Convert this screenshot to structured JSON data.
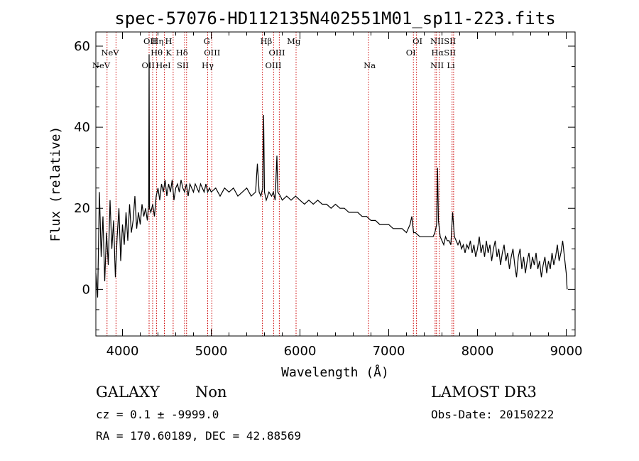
{
  "chart_data": {
    "type": "line",
    "title": "spec-57076-HD112135N402551M01_sp11-223.fits",
    "xlabel": "Wavelength (Å)",
    "ylabel": "Flux (relative)",
    "xlim": [
      3700,
      9100
    ],
    "ylim": [
      -11.5,
      63.5
    ],
    "x_ticks": [
      4000,
      5000,
      6000,
      7000,
      8000,
      9000
    ],
    "y_ticks": [
      0,
      20,
      40,
      60
    ],
    "grid": false,
    "series": [
      {
        "color": "#000000",
        "points": [
          [
            3700,
            4
          ],
          [
            3720,
            -2
          ],
          [
            3740,
            24
          ],
          [
            3760,
            8
          ],
          [
            3780,
            18
          ],
          [
            3800,
            2
          ],
          [
            3820,
            14
          ],
          [
            3840,
            6
          ],
          [
            3860,
            22
          ],
          [
            3880,
            10
          ],
          [
            3900,
            17
          ],
          [
            3920,
            3
          ],
          [
            3940,
            13
          ],
          [
            3960,
            20
          ],
          [
            3980,
            7
          ],
          [
            4000,
            16
          ],
          [
            4020,
            11
          ],
          [
            4040,
            19
          ],
          [
            4060,
            12
          ],
          [
            4080,
            21
          ],
          [
            4100,
            14
          ],
          [
            4120,
            17
          ],
          [
            4140,
            23
          ],
          [
            4160,
            15
          ],
          [
            4180,
            19
          ],
          [
            4200,
            16
          ],
          [
            4220,
            21
          ],
          [
            4240,
            18
          ],
          [
            4260,
            20
          ],
          [
            4280,
            17
          ],
          [
            4295,
            21
          ],
          [
            4300,
            58
          ],
          [
            4305,
            20
          ],
          [
            4320,
            19
          ],
          [
            4340,
            21
          ],
          [
            4360,
            18
          ],
          [
            4380,
            23
          ],
          [
            4400,
            25
          ],
          [
            4420,
            22
          ],
          [
            4440,
            26
          ],
          [
            4460,
            24
          ],
          [
            4480,
            27
          ],
          [
            4500,
            23
          ],
          [
            4520,
            26
          ],
          [
            4540,
            24
          ],
          [
            4560,
            27
          ],
          [
            4580,
            22
          ],
          [
            4600,
            25
          ],
          [
            4620,
            26
          ],
          [
            4640,
            24
          ],
          [
            4660,
            27
          ],
          [
            4680,
            25
          ],
          [
            4700,
            24
          ],
          [
            4720,
            26
          ],
          [
            4740,
            23
          ],
          [
            4760,
            26
          ],
          [
            4780,
            25
          ],
          [
            4800,
            24
          ],
          [
            4820,
            26
          ],
          [
            4840,
            25
          ],
          [
            4860,
            24
          ],
          [
            4880,
            26
          ],
          [
            4900,
            25
          ],
          [
            4920,
            24
          ],
          [
            4940,
            26
          ],
          [
            4960,
            24
          ],
          [
            4980,
            25
          ],
          [
            5000,
            24
          ],
          [
            5050,
            25
          ],
          [
            5100,
            23
          ],
          [
            5150,
            25
          ],
          [
            5200,
            24
          ],
          [
            5250,
            25
          ],
          [
            5300,
            23
          ],
          [
            5350,
            24
          ],
          [
            5400,
            25
          ],
          [
            5450,
            23
          ],
          [
            5500,
            24
          ],
          [
            5520,
            31
          ],
          [
            5540,
            24
          ],
          [
            5560,
            23
          ],
          [
            5580,
            25
          ],
          [
            5590,
            43
          ],
          [
            5600,
            24
          ],
          [
            5620,
            22
          ],
          [
            5650,
            24
          ],
          [
            5680,
            23
          ],
          [
            5700,
            24
          ],
          [
            5720,
            22
          ],
          [
            5740,
            33
          ],
          [
            5750,
            24
          ],
          [
            5780,
            23
          ],
          [
            5800,
            22
          ],
          [
            5850,
            23
          ],
          [
            5900,
            22
          ],
          [
            5950,
            23
          ],
          [
            6000,
            22
          ],
          [
            6050,
            21
          ],
          [
            6100,
            22
          ],
          [
            6150,
            21
          ],
          [
            6200,
            22
          ],
          [
            6250,
            21
          ],
          [
            6300,
            21
          ],
          [
            6350,
            20
          ],
          [
            6400,
            21
          ],
          [
            6450,
            20
          ],
          [
            6500,
            20
          ],
          [
            6550,
            19
          ],
          [
            6600,
            19
          ],
          [
            6650,
            19
          ],
          [
            6700,
            18
          ],
          [
            6750,
            18
          ],
          [
            6800,
            17
          ],
          [
            6850,
            17
          ],
          [
            6900,
            16
          ],
          [
            6950,
            16
          ],
          [
            7000,
            16
          ],
          [
            7050,
            15
          ],
          [
            7100,
            15
          ],
          [
            7150,
            15
          ],
          [
            7200,
            14
          ],
          [
            7240,
            16
          ],
          [
            7260,
            18
          ],
          [
            7280,
            14
          ],
          [
            7300,
            14
          ],
          [
            7350,
            13
          ],
          [
            7400,
            13
          ],
          [
            7450,
            13
          ],
          [
            7500,
            13
          ],
          [
            7520,
            14
          ],
          [
            7540,
            16
          ],
          [
            7550,
            30
          ],
          [
            7560,
            17
          ],
          [
            7580,
            13
          ],
          [
            7600,
            12
          ],
          [
            7620,
            11
          ],
          [
            7640,
            13
          ],
          [
            7660,
            12
          ],
          [
            7680,
            12
          ],
          [
            7700,
            11
          ],
          [
            7720,
            19
          ],
          [
            7740,
            13
          ],
          [
            7760,
            12
          ],
          [
            7780,
            11
          ],
          [
            7800,
            12
          ],
          [
            7820,
            10
          ],
          [
            7840,
            11
          ],
          [
            7860,
            9
          ],
          [
            7880,
            11
          ],
          [
            7900,
            10
          ],
          [
            7920,
            12
          ],
          [
            7940,
            9
          ],
          [
            7960,
            11
          ],
          [
            7980,
            8
          ],
          [
            8000,
            10
          ],
          [
            8020,
            13
          ],
          [
            8040,
            9
          ],
          [
            8060,
            11
          ],
          [
            8080,
            8
          ],
          [
            8100,
            12
          ],
          [
            8120,
            9
          ],
          [
            8140,
            11
          ],
          [
            8160,
            7
          ],
          [
            8180,
            10
          ],
          [
            8200,
            12
          ],
          [
            8220,
            8
          ],
          [
            8240,
            10
          ],
          [
            8260,
            6
          ],
          [
            8280,
            9
          ],
          [
            8300,
            11
          ],
          [
            8320,
            7
          ],
          [
            8340,
            9
          ],
          [
            8360,
            5
          ],
          [
            8380,
            8
          ],
          [
            8400,
            10
          ],
          [
            8420,
            6
          ],
          [
            8440,
            3
          ],
          [
            8460,
            8
          ],
          [
            8480,
            10
          ],
          [
            8500,
            5
          ],
          [
            8520,
            8
          ],
          [
            8540,
            4
          ],
          [
            8560,
            7
          ],
          [
            8580,
            9
          ],
          [
            8600,
            5
          ],
          [
            8620,
            8
          ],
          [
            8640,
            6
          ],
          [
            8660,
            9
          ],
          [
            8680,
            5
          ],
          [
            8700,
            7
          ],
          [
            8720,
            3
          ],
          [
            8740,
            6
          ],
          [
            8760,
            8
          ],
          [
            8780,
            4
          ],
          [
            8800,
            7
          ],
          [
            8820,
            5
          ],
          [
            8840,
            9
          ],
          [
            8860,
            6
          ],
          [
            8880,
            8
          ],
          [
            8900,
            11
          ],
          [
            8920,
            7
          ],
          [
            8940,
            9
          ],
          [
            8960,
            12
          ],
          [
            8980,
            8
          ],
          [
            9000,
            4
          ],
          [
            9010,
            0
          ]
        ]
      }
    ],
    "line_markers": {
      "color": "#cc0000",
      "style": "dotted",
      "wavelengths": [
        3826,
        3927,
        4300,
        4340,
        4383,
        4472,
        4571,
        4700,
        4722,
        4960,
        5007,
        5577,
        5703,
        5767,
        5956,
        6772,
        7278,
        7313,
        7523,
        7538,
        7570,
        7714,
        7731
      ],
      "labels": [
        {
          "text": "NeV",
          "x": 3860,
          "row": 2
        },
        {
          "text": "NeV",
          "x": 3760,
          "row": 3
        },
        {
          "text": "OII",
          "x": 4310,
          "row": 1
        },
        {
          "text": "Hη",
          "x": 4395,
          "row": 1
        },
        {
          "text": "H",
          "x": 4520,
          "row": 1
        },
        {
          "text": "Hθ",
          "x": 4385,
          "row": 2
        },
        {
          "text": "K",
          "x": 4520,
          "row": 2
        },
        {
          "text": "Hδ",
          "x": 4670,
          "row": 2
        },
        {
          "text": "OII",
          "x": 4290,
          "row": 3
        },
        {
          "text": "HeI",
          "x": 4460,
          "row": 3
        },
        {
          "text": "SII",
          "x": 4680,
          "row": 3
        },
        {
          "text": "G",
          "x": 4950,
          "row": 1
        },
        {
          "text": "OIII",
          "x": 5010,
          "row": 2
        },
        {
          "text": "Hγ",
          "x": 4960,
          "row": 3
        },
        {
          "text": "Hβ",
          "x": 5620,
          "row": 1
        },
        {
          "text": "OIII",
          "x": 5740,
          "row": 2
        },
        {
          "text": "OIII",
          "x": 5700,
          "row": 3
        },
        {
          "text": "Mg",
          "x": 5930,
          "row": 1
        },
        {
          "text": "Na",
          "x": 6785,
          "row": 3
        },
        {
          "text": "OI",
          "x": 7325,
          "row": 1
        },
        {
          "text": "OI",
          "x": 7250,
          "row": 2
        },
        {
          "text": "NII",
          "x": 7545,
          "row": 1
        },
        {
          "text": "SII",
          "x": 7690,
          "row": 1
        },
        {
          "text": "Hα",
          "x": 7550,
          "row": 2
        },
        {
          "text": "SII",
          "x": 7690,
          "row": 2
        },
        {
          "text": "NII",
          "x": 7545,
          "row": 3
        },
        {
          "text": "Li",
          "x": 7700,
          "row": 3
        }
      ]
    }
  },
  "info": {
    "class": "GALAXY",
    "subclass": "Non",
    "survey": "LAMOST DR3",
    "cz": "cz = 0.1 ± -9999.0",
    "obs_date": "Obs-Date: 20150222",
    "coords": "RA = 170.60189, DEC =  42.88569"
  }
}
